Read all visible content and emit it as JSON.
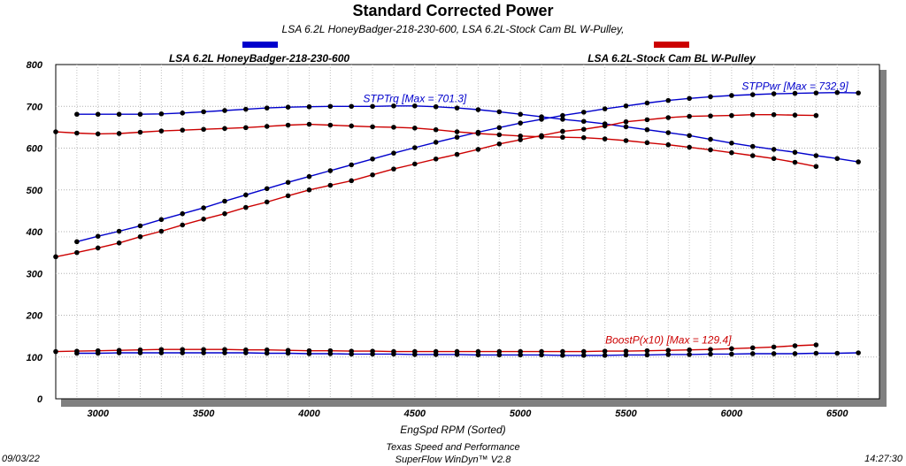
{
  "chart_data": {
    "type": "line",
    "title": "Standard Corrected Power",
    "subtitle": "LSA 6.2L HoneyBadger-218-230-600, LSA 6.2L-Stock Cam BL W-Pulley,",
    "xlabel": "EngSpd  RPM   (Sorted)",
    "ylabel": "",
    "xlim": [
      2800,
      6700
    ],
    "ylim": [
      0,
      800
    ],
    "x_ticks": [
      "3000",
      "3500",
      "4000",
      "4500",
      "5000",
      "5500",
      "6000",
      "6500"
    ],
    "y_ticks": [
      "0",
      "100",
      "200",
      "300",
      "400",
      "500",
      "600",
      "700",
      "800"
    ],
    "grid": true,
    "legend_position": "top",
    "legend": [
      {
        "name": "LSA 6.2L HoneyBadger-218-230-600",
        "color": "#0000cc"
      },
      {
        "name": "LSA 6.2L-Stock Cam BL W-Pulley",
        "color": "#cc0000"
      }
    ],
    "annotations": [
      {
        "text": "STPTrq [Max = 701.3]",
        "color": "#0000cc",
        "x": 4500,
        "y": 710
      },
      {
        "text": "STPPwr [Max = 732.9]",
        "color": "#0000cc",
        "x": 6300,
        "y": 740
      },
      {
        "text": "BoostP(x10) [Max = 129.4]",
        "color": "#cc0000",
        "x": 5700,
        "y": 132
      }
    ],
    "series": [
      {
        "color": "#0000cc",
        "x": [
          2900,
          3000,
          3100,
          3200,
          3300,
          3400,
          3500,
          3600,
          3700,
          3800,
          3900,
          4000,
          4100,
          4200,
          4300,
          4400,
          4500,
          4600,
          4700,
          4800,
          4900,
          5000,
          5100,
          5200,
          5300,
          5400,
          5500,
          5600,
          5700,
          5800,
          5900,
          6000,
          6100,
          6200,
          6300,
          6400,
          6500,
          6600
        ],
        "values": [
          681,
          681,
          681,
          681,
          682,
          684,
          687,
          690,
          693,
          696,
          698,
          699,
          700,
          700,
          700,
          701,
          701,
          699,
          696,
          692,
          687,
          681,
          675,
          669,
          664,
          658,
          651,
          644,
          637,
          630,
          621,
          612,
          604,
          597,
          590,
          582,
          575,
          567
        ]
      },
      {
        "color": "#0000cc",
        "x": [
          2900,
          3000,
          3100,
          3200,
          3300,
          3400,
          3500,
          3600,
          3700,
          3800,
          3900,
          4000,
          4100,
          4200,
          4300,
          4400,
          4500,
          4600,
          4700,
          4800,
          4900,
          5000,
          5100,
          5200,
          5300,
          5400,
          5500,
          5600,
          5700,
          5800,
          5900,
          6000,
          6100,
          6200,
          6300,
          6400,
          6500,
          6600
        ],
        "values": [
          376,
          389,
          401,
          414,
          429,
          443,
          457,
          473,
          488,
          503,
          518,
          532,
          546,
          560,
          574,
          588,
          601,
          614,
          626,
          638,
          649,
          660,
          669,
          678,
          686,
          694,
          701,
          708,
          714,
          719,
          723,
          726,
          728,
          730,
          731,
          732,
          733,
          732
        ]
      },
      {
        "color": "#0000cc",
        "x": [
          2900,
          3000,
          3100,
          3200,
          3300,
          3400,
          3500,
          3600,
          3700,
          3800,
          3900,
          4000,
          4100,
          4200,
          4300,
          4400,
          4500,
          4600,
          4700,
          4800,
          4900,
          5000,
          5100,
          5200,
          5300,
          5400,
          5500,
          5600,
          5700,
          5800,
          5900,
          6000,
          6100,
          6200,
          6300,
          6400,
          6500,
          6600
        ],
        "values": [
          109,
          109,
          110,
          110,
          110,
          110,
          110,
          110,
          110,
          109,
          109,
          108,
          108,
          107,
          107,
          107,
          106,
          106,
          106,
          105,
          105,
          105,
          105,
          104,
          104,
          104,
          105,
          105,
          106,
          106,
          107,
          107,
          108,
          108,
          108,
          109,
          109,
          110
        ]
      },
      {
        "color": "#cc0000",
        "x": [
          2800,
          2900,
          3000,
          3100,
          3200,
          3300,
          3400,
          3500,
          3600,
          3700,
          3800,
          3900,
          4000,
          4100,
          4200,
          4300,
          4400,
          4500,
          4600,
          4700,
          4800,
          4900,
          5000,
          5100,
          5200,
          5300,
          5400,
          5500,
          5600,
          5700,
          5800,
          5900,
          6000,
          6100,
          6200,
          6300,
          6400
        ],
        "values": [
          639,
          636,
          634,
          635,
          638,
          641,
          643,
          645,
          647,
          649,
          652,
          655,
          657,
          655,
          653,
          651,
          650,
          648,
          644,
          639,
          635,
          632,
          629,
          627,
          626,
          625,
          622,
          618,
          613,
          608,
          602,
          596,
          589,
          582,
          575,
          566,
          556
        ]
      },
      {
        "color": "#cc0000",
        "x": [
          2800,
          2900,
          3000,
          3100,
          3200,
          3300,
          3400,
          3500,
          3600,
          3700,
          3800,
          3900,
          4000,
          4100,
          4200,
          4300,
          4400,
          4500,
          4600,
          4700,
          4800,
          4900,
          5000,
          5100,
          5200,
          5300,
          5400,
          5500,
          5600,
          5700,
          5800,
          5900,
          6000,
          6100,
          6200,
          6300,
          6400
        ],
        "values": [
          340,
          350,
          361,
          373,
          388,
          401,
          416,
          430,
          443,
          458,
          471,
          486,
          500,
          511,
          522,
          536,
          550,
          562,
          574,
          585,
          597,
          610,
          620,
          630,
          640,
          645,
          653,
          663,
          668,
          673,
          676,
          677,
          678,
          680,
          680,
          679,
          678
        ]
      },
      {
        "color": "#cc0000",
        "x": [
          2800,
          2900,
          3000,
          3100,
          3200,
          3300,
          3400,
          3500,
          3600,
          3700,
          3800,
          3900,
          4000,
          4100,
          4200,
          4300,
          4400,
          4500,
          4600,
          4700,
          4800,
          4900,
          5000,
          5100,
          5200,
          5300,
          5400,
          5500,
          5600,
          5700,
          5800,
          5900,
          6000,
          6100,
          6200,
          6300,
          6400
        ],
        "values": [
          113,
          114,
          115,
          116,
          117,
          118,
          118,
          118,
          118,
          117,
          117,
          116,
          115,
          115,
          114,
          114,
          113,
          113,
          113,
          113,
          113,
          113,
          113,
          113,
          113,
          113,
          114,
          114,
          115,
          116,
          117,
          118,
          120,
          122,
          124,
          127,
          129
        ]
      }
    ]
  },
  "footer": {
    "date": "09/03/22",
    "company": "Texas Speed and Performance",
    "software": "SuperFlow WinDyn™  V2.8",
    "time": "14:27:30"
  }
}
